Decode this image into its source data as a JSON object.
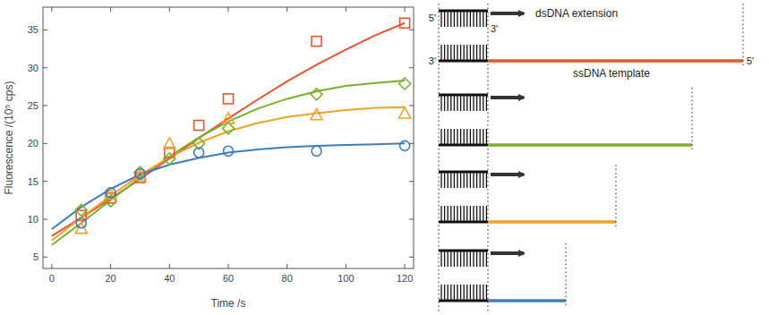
{
  "chart_data": {
    "type": "scatter",
    "x_label": "Time /s",
    "y_label": "Fluorescence /(10⁵ cps)",
    "xlim": [
      -3,
      123
    ],
    "xticks": [
      0,
      20,
      40,
      60,
      80,
      100,
      120
    ],
    "ylim": [
      3.5,
      38
    ],
    "yticks": [
      5,
      10,
      15,
      20,
      25,
      30,
      35
    ],
    "grid": false,
    "series": [
      {
        "type": "scatter",
        "marker": "square",
        "color": "#e8542c",
        "x": [
          10,
          20,
          30,
          40,
          50,
          60,
          90,
          120
        ],
        "values": [
          10.5,
          12.8,
          15.5,
          18.8,
          22.4,
          25.9,
          33.5,
          35.9
        ]
      },
      {
        "type": "scatter",
        "marker": "diamond",
        "color": "#7ab02c",
        "x": [
          10,
          20,
          30,
          40,
          50,
          60,
          90,
          120
        ],
        "values": [
          11.2,
          12.4,
          16.2,
          18.0,
          20.0,
          22.0,
          26.5,
          27.9
        ]
      },
      {
        "type": "scatter",
        "marker": "triangle",
        "color": "#eda22a",
        "x": [
          10,
          20,
          30,
          40,
          50,
          60,
          90,
          120
        ],
        "values": [
          8.8,
          13.3,
          15.8,
          20.0,
          null,
          23.3,
          23.8,
          24.0
        ]
      },
      {
        "type": "scatter",
        "marker": "circle",
        "color": "#3f7cbf",
        "x": [
          10,
          20,
          30,
          40,
          50,
          60,
          90,
          120
        ],
        "values": [
          9.5,
          13.5,
          16.0,
          null,
          18.8,
          19.0,
          19.0,
          19.7
        ]
      },
      {
        "type": "line",
        "line_style": "solid",
        "color": "#e8542c",
        "x": [
          0,
          10,
          20,
          30,
          40,
          50,
          60,
          70,
          80,
          90,
          100,
          110,
          120
        ],
        "values": [
          7.8,
          10.2,
          12.7,
          15.3,
          18.0,
          20.7,
          23.3,
          25.8,
          28.2,
          30.4,
          32.4,
          34.3,
          35.9
        ]
      },
      {
        "type": "line",
        "line_style": "solid",
        "color": "#7ab02c",
        "x": [
          0,
          10,
          20,
          30,
          40,
          50,
          60,
          70,
          80,
          90,
          100,
          110,
          120
        ],
        "values": [
          6.6,
          9.5,
          12.5,
          15.5,
          18.3,
          20.8,
          22.9,
          24.6,
          25.9,
          26.9,
          27.6,
          28.0,
          28.3
        ]
      },
      {
        "type": "line",
        "line_style": "solid",
        "color": "#eda22a",
        "x": [
          0,
          10,
          20,
          30,
          40,
          50,
          60,
          70,
          80,
          90,
          100,
          110,
          120
        ],
        "values": [
          7.2,
          10.2,
          13.1,
          15.8,
          18.2,
          20.1,
          21.6,
          22.7,
          23.5,
          24.0,
          24.4,
          24.7,
          24.8
        ]
      },
      {
        "type": "line",
        "line_style": "solid",
        "color": "#3f7cbf",
        "x": [
          0,
          10,
          20,
          30,
          40,
          50,
          60,
          70,
          80,
          90,
          100,
          110,
          120
        ],
        "values": [
          8.7,
          11.6,
          14.0,
          15.9,
          17.2,
          18.1,
          18.8,
          19.2,
          19.5,
          19.7,
          19.8,
          19.9,
          20.0
        ]
      }
    ]
  },
  "diagram": {
    "extension_label": "dsDNA extension",
    "template_label": "ssDNA template",
    "top_strand_ends": [
      "5'",
      "3'"
    ],
    "bottom_strand_ends": [
      "3'",
      "5'"
    ],
    "template_colors": [
      "#e8542c",
      "#7ab02c",
      "#eda22a",
      "#3f7cbf"
    ]
  }
}
